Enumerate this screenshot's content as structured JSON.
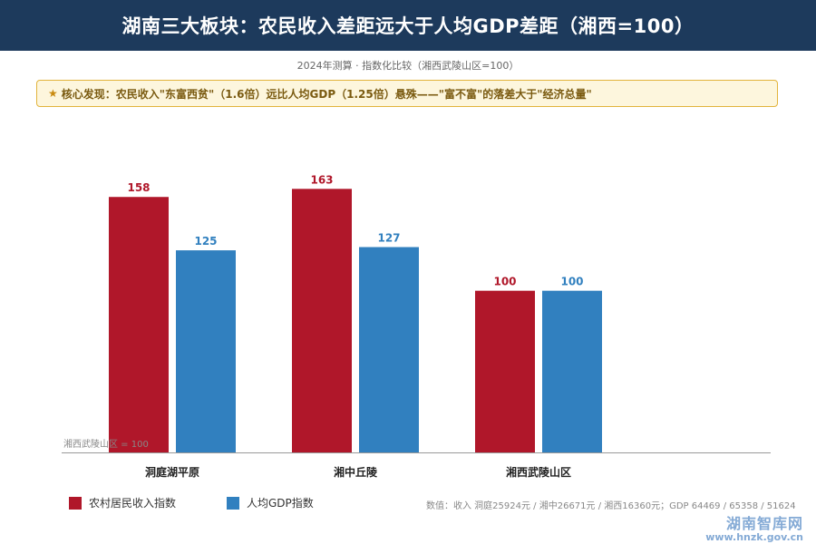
{
  "header": {
    "title": "湖南三大板块：农民收入差距远大于人均GDP差距（湘西=100）",
    "subtitle": "2024年测算 · 指数化比较（湘西武陵山区=100）"
  },
  "finding": {
    "star": "★",
    "text": "核心发现：农民收入\"东富西贫\"（1.6倍）远比人均GDP（1.25倍）悬殊——\"富不富\"的落差大于\"经济总量\""
  },
  "chart_data": {
    "type": "bar",
    "categories": [
      "洞庭湖平原",
      "湘中丘陵",
      "湘西武陵山区"
    ],
    "series": [
      {
        "name": "农村居民收入指数",
        "values": [
          158,
          163,
          100
        ],
        "color": "#b0172a"
      },
      {
        "name": "人均GDP指数",
        "values": [
          125,
          127,
          100
        ],
        "color": "#3180bf"
      }
    ],
    "ylim": [
      0,
      180
    ],
    "grid": false,
    "reference_label": "湘西武陵山区 = 100",
    "legend_position": "bottom-left"
  },
  "footnote": "数值：收入 洞庭25924元 / 湘中26671元 / 湘西16360元；GDP 64469 / 65358 / 51624",
  "watermark": {
    "name": "湖南智库网",
    "url": "www.hnzk.gov.cn"
  }
}
